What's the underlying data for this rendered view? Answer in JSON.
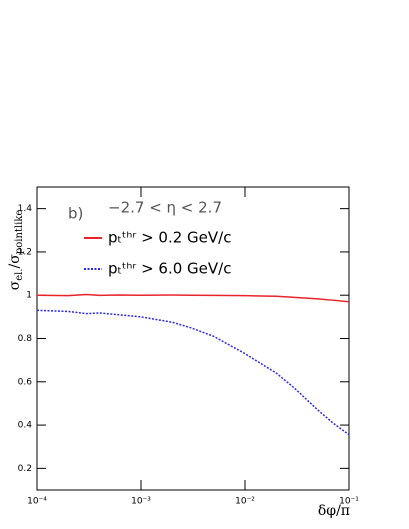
{
  "chart_data": {
    "type": "line",
    "panel_label": "b)",
    "annotation": "−2.7 < η < 2.7",
    "x_label": "δφ/π",
    "y_label": {
      "main": "σ",
      "main_sub": "el.",
      "den": "/σ",
      "den_sub": "pointlike"
    },
    "x": [
      0.0001,
      0.0002,
      0.0003,
      0.0004,
      0.0006,
      0.001,
      0.002,
      0.003,
      0.005,
      0.01,
      0.02,
      0.03,
      0.05,
      0.07,
      0.1
    ],
    "series": [
      {
        "name": "pₜᵗʰʳ > 0.2 GeV/c",
        "color": "#e8232a",
        "style": "solid",
        "values": [
          1,
          0.998,
          1.003,
          0.999,
          1.001,
          1.0,
          1.001,
          1.0,
          0.999,
          0.998,
          0.995,
          0.99,
          0.983,
          0.977,
          0.97
        ]
      },
      {
        "name": "pₜᵗʰʳ > 6.0 GeV/c",
        "color": "#2a2ae8",
        "style": "dotted",
        "values": [
          0.93,
          0.925,
          0.915,
          0.918,
          0.91,
          0.9,
          0.875,
          0.85,
          0.81,
          0.73,
          0.64,
          0.57,
          0.47,
          0.41,
          0.355
        ]
      }
    ],
    "xlog": true,
    "xlim": [
      0.0001,
      0.1
    ],
    "xticks": [
      {
        "value": 0.0001,
        "label": "10⁻⁴"
      },
      {
        "value": 0.001,
        "label": "10⁻³"
      },
      {
        "value": 0.01,
        "label": "10⁻²"
      },
      {
        "value": 0.1,
        "label": "10⁻¹"
      }
    ],
    "ylim": [
      0.1,
      1.5
    ],
    "yticks": [
      0.2,
      0.4,
      0.6,
      0.8,
      1,
      1.2,
      1.4
    ],
    "grid": false,
    "legend": "upper-left"
  }
}
